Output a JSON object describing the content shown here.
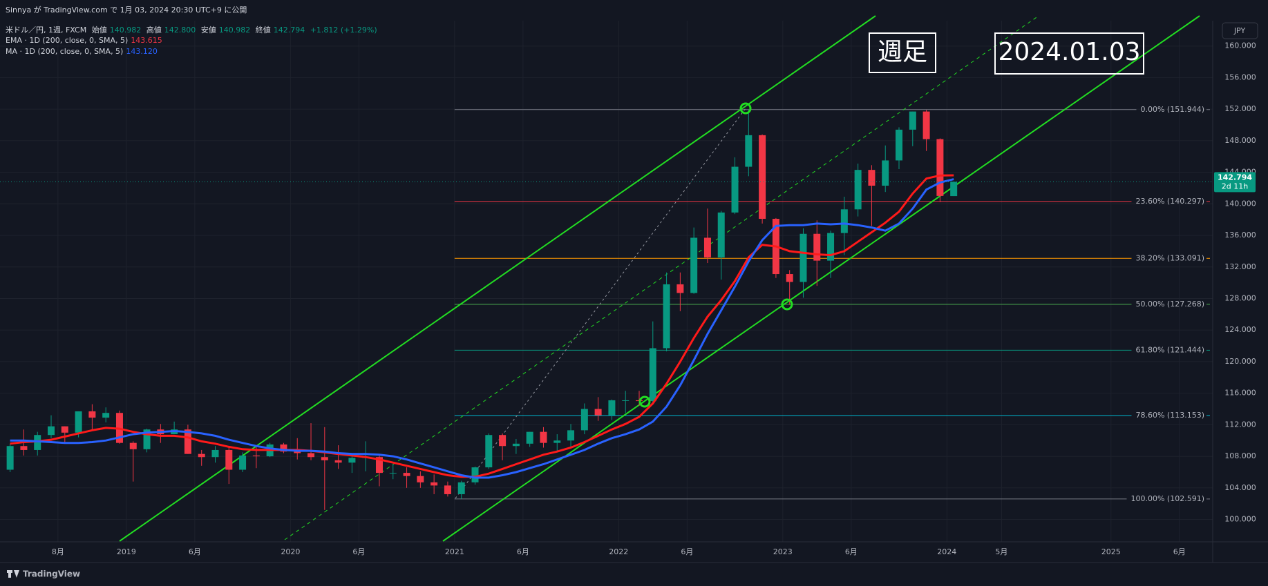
{
  "header": {
    "publish": "Sinnya が TradingView.com で 1月 03, 2024 20:30 UTC+9 に公開",
    "symbol": "米ドル／円, 1週, FXCM",
    "ohlc": [
      {
        "label": "始値",
        "value": "140.982"
      },
      {
        "label": "高値",
        "value": "142.800"
      },
      {
        "label": "安値",
        "value": "140.982"
      },
      {
        "label": "終値",
        "value": "142.794"
      }
    ],
    "change": "+1.812 (+1.29%)",
    "indicators": [
      {
        "name": "EMA · 1D (200, close, 0, SMA, 5)",
        "value": "143.615"
      },
      {
        "name": "MA · 1D (200, close, 0, SMA, 5)",
        "value": "143.120"
      }
    ]
  },
  "badges": {
    "timeframe": "週足",
    "date": "2024.01.03"
  },
  "currency": "JPY",
  "price_tag": {
    "price": "142.794",
    "countdown": "2d 11h"
  },
  "footer": "TradingView",
  "chart_data": {
    "type": "candlestick",
    "x": [
      "2018-04",
      "2018-05",
      "2018-06",
      "2018-07",
      "2018-08",
      "2018-09",
      "2018-10",
      "2018-11",
      "2018-12",
      "2019-01",
      "2019-02",
      "2019-03",
      "2019-04",
      "2019-05",
      "2019-06",
      "2019-07",
      "2019-08",
      "2019-09",
      "2019-10",
      "2019-11",
      "2019-12",
      "2020-01",
      "2020-02",
      "2020-03",
      "2020-04",
      "2020-05",
      "2020-06",
      "2020-07",
      "2020-08",
      "2020-09",
      "2020-10",
      "2020-11",
      "2020-12",
      "2021-01",
      "2021-02",
      "2021-03",
      "2021-04",
      "2021-05",
      "2021-06",
      "2021-07",
      "2021-08",
      "2021-09",
      "2021-10",
      "2021-11",
      "2021-12",
      "2022-01",
      "2022-02",
      "2022-03",
      "2022-04",
      "2022-05",
      "2022-06",
      "2022-07",
      "2022-08",
      "2022-09",
      "2022-10",
      "2022-11",
      "2022-12",
      "2023-01",
      "2023-02",
      "2023-03",
      "2023-04",
      "2023-05",
      "2023-06",
      "2023-07",
      "2023-08",
      "2023-09",
      "2023-10",
      "2023-11",
      "2023-12",
      "2024-01"
    ],
    "open": [
      106.3,
      109.3,
      108.8,
      110.7,
      111.8,
      111.0,
      113.7,
      112.9,
      113.5,
      109.7,
      108.9,
      111.4,
      110.8,
      111.4,
      108.3,
      107.9,
      108.8,
      106.3,
      108.1,
      108.0,
      109.5,
      108.6,
      108.4,
      107.9,
      107.5,
      107.2,
      107.8,
      107.9,
      105.9,
      105.9,
      105.5,
      104.7,
      104.3,
      103.2,
      104.7,
      106.6,
      110.7,
      109.3,
      109.6,
      111.1,
      109.7,
      110.0,
      111.3,
      114.0,
      113.2,
      115.1,
      115.1,
      115.0,
      121.7,
      129.8,
      128.7,
      135.7,
      133.2,
      138.9,
      144.7,
      148.7,
      138.1,
      131.1,
      130.1,
      136.2,
      132.8,
      136.3,
      139.3,
      144.3,
      142.3,
      145.5,
      149.4,
      151.7,
      148.2,
      140.982
    ],
    "high": [
      109.6,
      111.4,
      111.1,
      113.2,
      111.8,
      113.7,
      114.6,
      114.2,
      113.8,
      109.9,
      111.5,
      112.1,
      112.4,
      112.0,
      108.8,
      109.3,
      109.3,
      108.5,
      109.3,
      109.7,
      109.7,
      110.3,
      112.2,
      111.7,
      109.4,
      108.1,
      109.9,
      108.2,
      107.0,
      106.6,
      106.1,
      105.7,
      104.8,
      104.9,
      106.7,
      110.9,
      110.9,
      110.2,
      111.1,
      111.7,
      110.8,
      112.1,
      114.7,
      115.5,
      115.2,
      116.3,
      116.3,
      125.1,
      131.3,
      131.3,
      137.0,
      139.4,
      139.1,
      145.9,
      151.9,
      148.8,
      138.2,
      131.6,
      136.9,
      137.9,
      136.6,
      140.9,
      145.1,
      144.9,
      147.4,
      149.7,
      151.7,
      151.9,
      148.3,
      142.8
    ],
    "low": [
      106.0,
      108.1,
      108.1,
      110.3,
      109.8,
      110.4,
      111.4,
      112.3,
      109.6,
      104.8,
      108.5,
      109.7,
      110.8,
      108.3,
      106.8,
      107.2,
      104.5,
      106.0,
      106.5,
      107.9,
      108.4,
      107.6,
      107.5,
      101.2,
      106.4,
      105.9,
      106.1,
      104.2,
      105.1,
      104.0,
      104.0,
      103.2,
      102.9,
      102.6,
      104.4,
      106.4,
      107.5,
      108.3,
      109.2,
      109.1,
      108.7,
      109.1,
      110.8,
      112.5,
      112.6,
      113.5,
      114.4,
      114.7,
      121.3,
      126.4,
      128.6,
      132.5,
      130.4,
      138.7,
      143.5,
      137.5,
      130.6,
      127.2,
      128.1,
      129.6,
      130.6,
      133.5,
      138.4,
      137.2,
      141.5,
      144.4,
      147.3,
      146.7,
      140.2,
      140.982
    ],
    "close": [
      109.3,
      108.8,
      110.7,
      111.8,
      111.0,
      113.7,
      112.9,
      113.5,
      109.7,
      108.9,
      111.4,
      110.8,
      111.4,
      108.3,
      107.9,
      108.8,
      106.3,
      108.1,
      108.0,
      109.5,
      108.6,
      108.4,
      107.9,
      107.5,
      107.2,
      107.8,
      107.9,
      105.9,
      105.9,
      105.5,
      104.7,
      104.3,
      103.2,
      104.7,
      106.6,
      110.7,
      109.3,
      109.6,
      111.1,
      109.7,
      110.0,
      111.3,
      114.0,
      113.2,
      115.1,
      115.1,
      115.0,
      121.7,
      129.8,
      128.7,
      135.7,
      133.2,
      138.9,
      144.7,
      148.7,
      138.1,
      131.1,
      130.1,
      136.2,
      132.8,
      136.3,
      139.3,
      144.3,
      142.3,
      145.5,
      149.4,
      151.7,
      148.2,
      141.0,
      142.794
    ],
    "up_color": "#089981",
    "down_color": "#f23645",
    "series": [
      {
        "name": "EMA · 1D (200, close, 0, SMA, 5)",
        "color": "#ff1a1a",
        "values": [
          109.6,
          109.8,
          109.9,
          110.1,
          110.5,
          110.9,
          111.3,
          111.6,
          111.5,
          111.1,
          110.8,
          110.6,
          110.6,
          110.4,
          109.9,
          109.6,
          109.2,
          108.9,
          108.8,
          108.8,
          108.8,
          108.8,
          108.7,
          108.5,
          108.3,
          108.1,
          107.9,
          107.6,
          107.2,
          106.8,
          106.4,
          106.0,
          105.6,
          105.4,
          105.4,
          105.8,
          106.4,
          107.0,
          107.6,
          108.2,
          108.6,
          109.1,
          109.8,
          110.6,
          111.4,
          112.1,
          113.0,
          114.7,
          117.2,
          120.0,
          123.0,
          125.7,
          127.8,
          130.2,
          133.2,
          134.8,
          134.6,
          134.0,
          133.8,
          133.6,
          133.5,
          134.0,
          135.2,
          136.4,
          137.6,
          139.0,
          141.3,
          143.2,
          143.6,
          143.615
        ]
      },
      {
        "name": "MA · 1D (200, close, 0, SMA, 5)",
        "color": "#2962ff",
        "values": [
          110.0,
          110.0,
          109.9,
          109.8,
          109.7,
          109.7,
          109.8,
          110.0,
          110.4,
          110.8,
          111.0,
          111.1,
          111.2,
          111.1,
          110.9,
          110.6,
          110.1,
          109.7,
          109.3,
          109.0,
          108.8,
          108.7,
          108.7,
          108.6,
          108.4,
          108.3,
          108.3,
          108.2,
          108.0,
          107.6,
          107.1,
          106.6,
          106.1,
          105.6,
          105.3,
          105.3,
          105.6,
          106.0,
          106.5,
          107.0,
          107.6,
          108.2,
          108.8,
          109.6,
          110.3,
          110.8,
          111.4,
          112.4,
          114.3,
          117.0,
          120.2,
          123.5,
          126.5,
          129.5,
          132.7,
          135.4,
          137.2,
          137.3,
          137.3,
          137.5,
          137.4,
          137.5,
          137.3,
          137.0,
          136.6,
          137.5,
          139.4,
          141.8,
          142.7,
          143.12
        ]
      }
    ],
    "fib_levels": [
      {
        "value": 151.944,
        "label": "0.00% (151.944)",
        "color": "#787b86"
      },
      {
        "value": 140.297,
        "label": "23.60% (140.297)",
        "color": "#f23645"
      },
      {
        "value": 133.091,
        "label": "38.20% (133.091)",
        "color": "#ff9800"
      },
      {
        "value": 127.268,
        "label": "50.00% (127.268)",
        "color": "#4caf50"
      },
      {
        "value": 121.444,
        "label": "61.80% (121.444)",
        "color": "#089981"
      },
      {
        "value": 113.153,
        "label": "78.60% (113.153)",
        "color": "#00bcd4"
      },
      {
        "value": 102.591,
        "label": "100.00% (102.591)",
        "color": "#787b86"
      }
    ],
    "xlim": [
      2018.23,
      2025.62
    ],
    "xticks": [
      {
        "value": 2018.583,
        "label": "8月"
      },
      2019,
      {
        "value": 2019.417,
        "label": "6月"
      },
      2020,
      {
        "value": 2020.417,
        "label": "6月"
      },
      2021,
      {
        "value": 2021.417,
        "label": "6月"
      },
      2022,
      {
        "value": 2022.417,
        "label": "6月"
      },
      2023,
      {
        "value": 2023.417,
        "label": "6月"
      },
      2024,
      {
        "value": 2024.333,
        "label": "5月"
      },
      2025,
      {
        "value": 2025.417,
        "label": "6月"
      }
    ],
    "ylim": [
      97.16,
      163.21
    ],
    "yticks": [
      {
        "value": 100,
        "label": "100.000"
      },
      {
        "value": 104,
        "label": "104.000"
      },
      {
        "value": 108,
        "label": "108.000"
      },
      {
        "value": 112,
        "label": "112.000"
      },
      {
        "value": 116,
        "label": "116.000"
      },
      {
        "value": 120,
        "label": "120.000"
      },
      {
        "value": 124,
        "label": "124.000"
      },
      {
        "value": 128,
        "label": "128.000"
      },
      {
        "value": 132,
        "label": "132.000"
      },
      {
        "value": 136,
        "label": "136.000"
      },
      {
        "value": 140,
        "label": "140.000"
      },
      {
        "value": 144,
        "label": "144.000"
      },
      {
        "value": 148,
        "label": "148.000"
      },
      {
        "value": 152,
        "label": "152.000"
      },
      {
        "value": 156,
        "label": "156.000"
      },
      {
        "value": 160,
        "label": "160.000"
      }
    ],
    "grid": true
  }
}
